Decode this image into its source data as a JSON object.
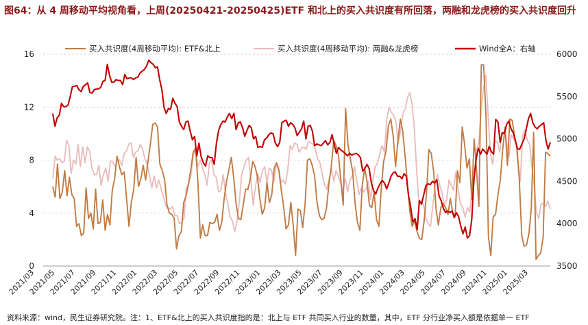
{
  "figure": {
    "title": "图64：从 4 周移动平均视角看，上周(20250421-20250425)ETF 和北上的买入共识度有所回落，两融和龙虎榜的买入共识度回升",
    "source": "资料来源：wind，民生证券研究院。注：1、ETF&北上的买入共识度指的是：北上与 ETF 共同买入行业的数量，其中，ETF 分行业净买入额是依据单一 ETF"
  },
  "chart_data": {
    "type": "line",
    "x_tick_labels": [
      "2021/03",
      "2021/05",
      "2021/07",
      "2021/09",
      "2021/11",
      "2022/01",
      "2022/03",
      "2022/05",
      "2022/07",
      "2022/09",
      "2022/11",
      "2023/01",
      "2023/03",
      "2023/05",
      "2023/07",
      "2023/09",
      "2023/11",
      "2024/01",
      "2024/03",
      "2024/05",
      "2024/07",
      "2024/09",
      "2024/11",
      "2025/01",
      "2025/03"
    ],
    "x_range": [
      "2021-03",
      "2025-04"
    ],
    "left_axis": {
      "ylim": [
        0,
        16
      ],
      "ticks": [
        "0",
        "4",
        "8",
        "12",
        "16"
      ]
    },
    "right_axis": {
      "ylim": [
        3500,
        6000
      ],
      "ticks": [
        "3500",
        "4000",
        "4500",
        "5000",
        "5500",
        "6000"
      ]
    },
    "legend_position": "top",
    "series": [
      {
        "name": "买入共识度(4周移动平均): ETF&北上",
        "axis": "left",
        "color": "#c07b44",
        "values": [
          6,
          5.2,
          7.7,
          5.1,
          5.6,
          7.2,
          5.3,
          6.7,
          5.4,
          5.1,
          3,
          3.2,
          2.3,
          2.5,
          5.9,
          3.6,
          4,
          2.8,
          5.8,
          3.2,
          3.3,
          5,
          2.7,
          3.9,
          3.1,
          5.7,
          6.6,
          8.3,
          7.5,
          6.9,
          7.1,
          5.1,
          3,
          4.8,
          5.8,
          8.2,
          6,
          6.6,
          7.6,
          6.5,
          7.9,
          9.2,
          10.7,
          10.8,
          10.5,
          7.7,
          7.2,
          6.5,
          4.6,
          4,
          3.9,
          3.6,
          1.3,
          2.3,
          2.6,
          4.8,
          5.3,
          6.2,
          7.3,
          8.6,
          8.9,
          6.2,
          2.1,
          3.1,
          2.3,
          2.3,
          3.3,
          3.2,
          3.3,
          3.9,
          2.7,
          3.3,
          5.1,
          6.4,
          7.3,
          8.2,
          6.7,
          4.7,
          3.6,
          3.5,
          4.6,
          5.8,
          5.8,
          6.6,
          7.9,
          7.5,
          6.7,
          5.1,
          3.9,
          4.4,
          6.3,
          4.8,
          5.4,
          7.4,
          7.8,
          7.2,
          5.7,
          4.5,
          2.8,
          3.1,
          4.8,
          3.1,
          0.8,
          4.3,
          4.2,
          2.9,
          4.7,
          8,
          8.1,
          7.6,
          6.8,
          4.8,
          3.8,
          3.5,
          3.6,
          4.4,
          6.2,
          7.5,
          9.5,
          9.1,
          8.4,
          6.5,
          4.6,
          11.9,
          9.2,
          8.1,
          7.1,
          4.7,
          3.3,
          2.7,
          6.1,
          7.4,
          6.4,
          4.6,
          4.4,
          5.6,
          3.5,
          3,
          5.9,
          7.9,
          8.7,
          10.6,
          11.1,
          9.8,
          7.5,
          9.5,
          11.1,
          10.2,
          8.3,
          6.2,
          4.1,
          3,
          3.4,
          2.6,
          2.1,
          2,
          3.4,
          5.5,
          8.8,
          8.5,
          7.1,
          4.3,
          3.1,
          4.4,
          4.7,
          4.4,
          3.9,
          5.1,
          4,
          3.8,
          7.2,
          6.3,
          10.5,
          9.2,
          7.4,
          8.1,
          5,
          9.6,
          7.3,
          4.5,
          15.2,
          15.2,
          11.3,
          2.2,
          0.8,
          3.7,
          3.9,
          5.4,
          6.5,
          8.8,
          10.5,
          7.6,
          11.1,
          11,
          9.8,
          8.9,
          6.5,
          2.3,
          1.5,
          1.6,
          2.4,
          4.3,
          10.1,
          0.5,
          0.8,
          1,
          2.2,
          8.6,
          8.5,
          8.3
        ]
      },
      {
        "name": "买入共识度(4周移动平均): 两融&龙虎榜",
        "axis": "left",
        "color": "#ebbcbc",
        "values": [
          6.6,
          8.3,
          8,
          8.1,
          7.8,
          7.9,
          9.5,
          9.1,
          7,
          8,
          7.7,
          9.2,
          7.5,
          9,
          7.8,
          9,
          8.7,
          7.4,
          6.9,
          6.9,
          7.6,
          6.1,
          6.9,
          7.4,
          6.4,
          7.9,
          7.9,
          7.5,
          8,
          8,
          7.6,
          8.5,
          8.7,
          9.2,
          9.3,
          8.2,
          8.6,
          8.7,
          9.2,
          8.8,
          8.1,
          7.7,
          6.8,
          5.9,
          6.8,
          5.9,
          6.5,
          5.9,
          5.3,
          4.6,
          4.4,
          4.3,
          4.5,
          3.8,
          3.8,
          3.2,
          3.3,
          3.6,
          5.9,
          6.2,
          6.9,
          8.3,
          8.8,
          7.5,
          8,
          7.4,
          6.9,
          6.1,
          7.8,
          8,
          6.9,
          6.7,
          5.6,
          5.7,
          6.9,
          5.5,
          4.7,
          3.7,
          3.4,
          2.6,
          3.4,
          4.9,
          6.9,
          7.5,
          8,
          8.2,
          6.5,
          4.6,
          6,
          7,
          6.3,
          7.2,
          7.5,
          6.3,
          7.4,
          7.2,
          6.4,
          7.6,
          7.5,
          6.3,
          6.5,
          6.2,
          7.2,
          9.1,
          8.8,
          9.3,
          9.2,
          8.6,
          8.9,
          9,
          8.8,
          9.4,
          9.3,
          9.2,
          8.8,
          8.1,
          7.8,
          6.9,
          6.1,
          5.8,
          6.6,
          7.3,
          6.4,
          7.2,
          6.8,
          6.2,
          5.7,
          6.6,
          5.6,
          6.5,
          6.8,
          7.5,
          6.4,
          5.4,
          5.9,
          5.6,
          5.8,
          6.4,
          5,
          6.5,
          7.5,
          7.8,
          8.5,
          9.1,
          8.6,
          11.1,
          12,
          11.6,
          11.4,
          10.9,
          9.2,
          10.3,
          11.5,
          11.9,
          12.7,
          13.1,
          12.2,
          10.3,
          7.1,
          4.6,
          5,
          4.6,
          3.6,
          3.2,
          3,
          4.6,
          6.1,
          6.9,
          6.1,
          5.5,
          4.6,
          5,
          6.5,
          6.1,
          5.7,
          7.1,
          5.8,
          4.7,
          4.4,
          3.7,
          4.4,
          4.1,
          5.7,
          6.4,
          8.8,
          9.3,
          11.9,
          13.4,
          14.4,
          11.4,
          8.5,
          7.7,
          9.4,
          9.4,
          8.6,
          10.1,
          9.9,
          9.4,
          8.2,
          9.9,
          9.6,
          9.3,
          7.8,
          6.4,
          9.9,
          10.3,
          9.5,
          9.2,
          7.5,
          6.1,
          4,
          3.6,
          4.7,
          4.7,
          4.5,
          4.9,
          4.3
        ]
      },
      {
        "name": "Wind全A：右轴",
        "axis": "right",
        "color": "#c00000",
        "values": [
          5300,
          5150,
          5250,
          5280,
          5420,
          5380,
          5380,
          5400,
          5500,
          5620,
          5620,
          5630,
          5580,
          5560,
          5620,
          5640,
          5660,
          5550,
          5540,
          5580,
          5590,
          5590,
          5610,
          5680,
          5690,
          5880,
          5750,
          5670,
          5670,
          5700,
          5690,
          5690,
          5640,
          5760,
          5710,
          5720,
          5720,
          5700,
          5720,
          5730,
          5780,
          5800,
          5820,
          5860,
          5930,
          5900,
          5880,
          5840,
          5850,
          5700,
          5580,
          5370,
          5300,
          5360,
          5350,
          5480,
          5420,
          5380,
          5200,
          5150,
          5110,
          5200,
          5210,
          5090,
          4990,
          5030,
          4800,
          4950,
          4790,
          4720,
          4680,
          4800,
          4780,
          4780,
          4700,
          4950,
          5100,
          5170,
          5210,
          5200,
          5260,
          5300,
          5240,
          5300,
          5110,
          5190,
          5200,
          5130,
          5030,
          5100,
          5160,
          5130,
          5000,
          5030,
          4900,
          4910,
          4900,
          4990,
          5010,
          5050,
          5070,
          5060,
          4950,
          4910,
          4960,
          5190,
          5210,
          5220,
          5150,
          5190,
          5170,
          5130,
          5040,
          5080,
          5120,
          5210,
          5000,
          5150,
          5160,
          5090,
          4920,
          4940,
          4930,
          4920,
          4950,
          4980,
          4930,
          4960,
          5050,
          4930,
          4830,
          4900,
          4870,
          4850,
          4830,
          4800,
          4830,
          4810,
          4820,
          4830,
          4810,
          4780,
          4620,
          4650,
          4700,
          4650,
          4480,
          4390,
          4350,
          4420,
          4470,
          4510,
          4480,
          4410,
          4480,
          4560,
          4600,
          4610,
          4560,
          4560,
          4530,
          4590,
          4560,
          4340,
          4200,
          4020,
          4060,
          3930,
          4270,
          4230,
          4340,
          4450,
          4470,
          4460,
          4500,
          4480,
          4520,
          4330,
          4270,
          4180,
          4130,
          4150,
          4130,
          4150,
          4070,
          4130,
          4080,
          3970,
          3880,
          3960,
          3830,
          3860,
          4050,
          4530,
          4760,
          4890,
          4820,
          4880,
          4850,
          4820,
          4910,
          4850,
          4820,
          5230,
          5200,
          4960,
          5070,
          5070,
          5170,
          5210,
          5120,
          5070,
          4980,
          4880,
          4880,
          4940,
          5000,
          5120,
          5240,
          5300,
          5190,
          5140,
          5120,
          5150,
          5170,
          5190,
          4980,
          4880,
          4960
        ]
      }
    ]
  }
}
